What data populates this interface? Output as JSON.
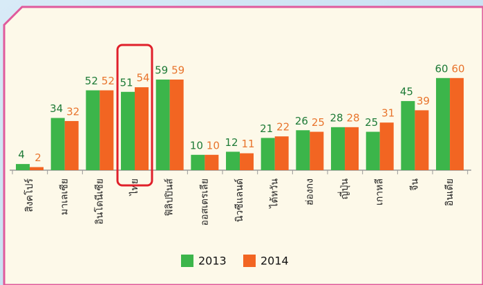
{
  "chart_data": {
    "type": "bar",
    "categories": [
      "สิงคโปร์",
      "มาเลเซีย",
      "อินโดนีเซีย",
      "ไทย",
      "ฟิลิปปินส์",
      "ออสเตรเลีย",
      "นิวซีแลนด์",
      "ไต้หวัน",
      "ฮ่องกง",
      "ญี่ปุ่น",
      "เกาหลี",
      "จีน",
      "อินเดีย"
    ],
    "series": [
      {
        "name": "2013",
        "color": "#3cb54a",
        "label_color": "#1d7a36",
        "values": [
          4,
          34,
          52,
          51,
          59,
          10,
          12,
          21,
          26,
          28,
          25,
          45,
          60
        ]
      },
      {
        "name": "2014",
        "color": "#f26522",
        "label_color": "#e8742c",
        "values": [
          2,
          32,
          52,
          54,
          59,
          10,
          11,
          22,
          25,
          28,
          31,
          39,
          60
        ]
      }
    ],
    "legend": "bottom"
  }
}
